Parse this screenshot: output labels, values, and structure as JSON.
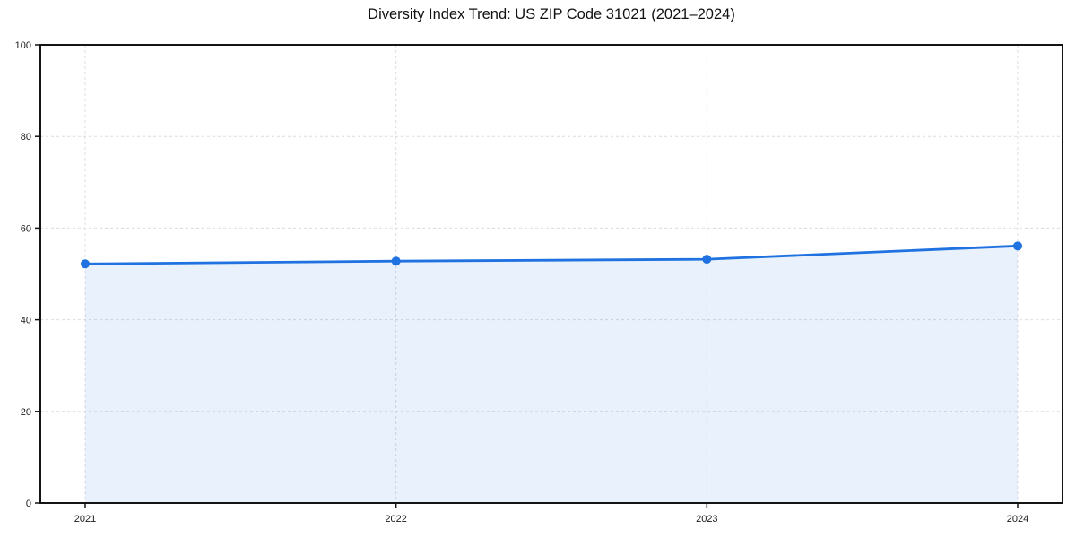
{
  "chart_data": {
    "type": "line",
    "title": "Diversity Index Trend: US ZIP Code 31021 (2021–2024)",
    "series_name": "Diversity Index",
    "categories": [
      "2021",
      "2022",
      "2023",
      "2024"
    ],
    "values": [
      52.2,
      52.8,
      53.2,
      56.1
    ],
    "xlabel": "",
    "ylabel": "",
    "ylim": [
      0,
      100
    ],
    "yticks": [
      0,
      20,
      40,
      60,
      80,
      100
    ],
    "grid": true,
    "grid_style": "dashed",
    "legend_position": "none",
    "area_fill": true,
    "marker": "circle",
    "colors": {
      "line": "#1f72e0",
      "marker": "#1f72e0",
      "fill": "rgba(31,114,224,0.10)",
      "grid": "#dcdcdc",
      "axis": "#141414",
      "tick_label": "#1a1a1a",
      "background": "#ffffff"
    }
  }
}
